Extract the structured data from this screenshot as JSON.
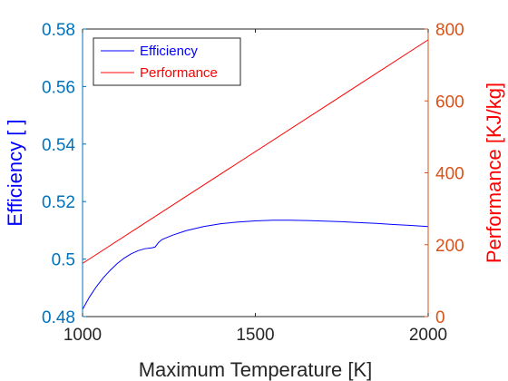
{
  "chart_data": {
    "type": "line",
    "xlabel": "Maximum Temperature [K]",
    "ylabel_left": "Efficiency [ ]",
    "ylabel_right": "Performance [KJ/kg]",
    "xlim": [
      1000,
      2000
    ],
    "ylim_left": [
      0.48,
      0.58
    ],
    "ylim_right": [
      0,
      800
    ],
    "xticks": [
      1000,
      1500,
      2000
    ],
    "xtick_labels": [
      "1000",
      "1500",
      "2000"
    ],
    "yticks_left": [
      0.48,
      0.5,
      0.52,
      0.54,
      0.56,
      0.58
    ],
    "ytick_labels_left": [
      "0.48",
      "0.5",
      "0.52",
      "0.54",
      "0.56",
      "0.58"
    ],
    "yticks_right": [
      0,
      200,
      400,
      600,
      800
    ],
    "ytick_labels_right": [
      "0",
      "200",
      "400",
      "600",
      "800"
    ],
    "grid": false,
    "legend_position": "top-left",
    "colors": {
      "axis_left": "#0072BD",
      "axis_right": "#D95319",
      "label_left": "#0000ff",
      "label_right": "#ff0000",
      "axis_x": "#262626"
    },
    "series": [
      {
        "name": "Efficiency",
        "axis": "left",
        "color": "#0000ff",
        "x": [
          1000,
          1020,
          1040,
          1060,
          1080,
          1100,
          1120,
          1140,
          1160,
          1180,
          1200,
          1210,
          1220,
          1230,
          1260,
          1300,
          1350,
          1400,
          1450,
          1500,
          1550,
          1600,
          1650,
          1700,
          1750,
          1800,
          1850,
          1900,
          1950,
          2000
        ],
        "y": [
          0.4825,
          0.4868,
          0.4904,
          0.4935,
          0.4961,
          0.4984,
          0.5003,
          0.5018,
          0.5029,
          0.5036,
          0.5039,
          0.5042,
          0.5058,
          0.5068,
          0.5083,
          0.5099,
          0.5113,
          0.5123,
          0.5129,
          0.5133,
          0.5135,
          0.5135,
          0.5134,
          0.5132,
          0.513,
          0.5127,
          0.5124,
          0.512,
          0.5117,
          0.5113
        ]
      },
      {
        "name": "Performance",
        "axis": "right",
        "color": "#ff0000",
        "x": [
          1000,
          2000
        ],
        "y": [
          148,
          770
        ]
      }
    ]
  }
}
